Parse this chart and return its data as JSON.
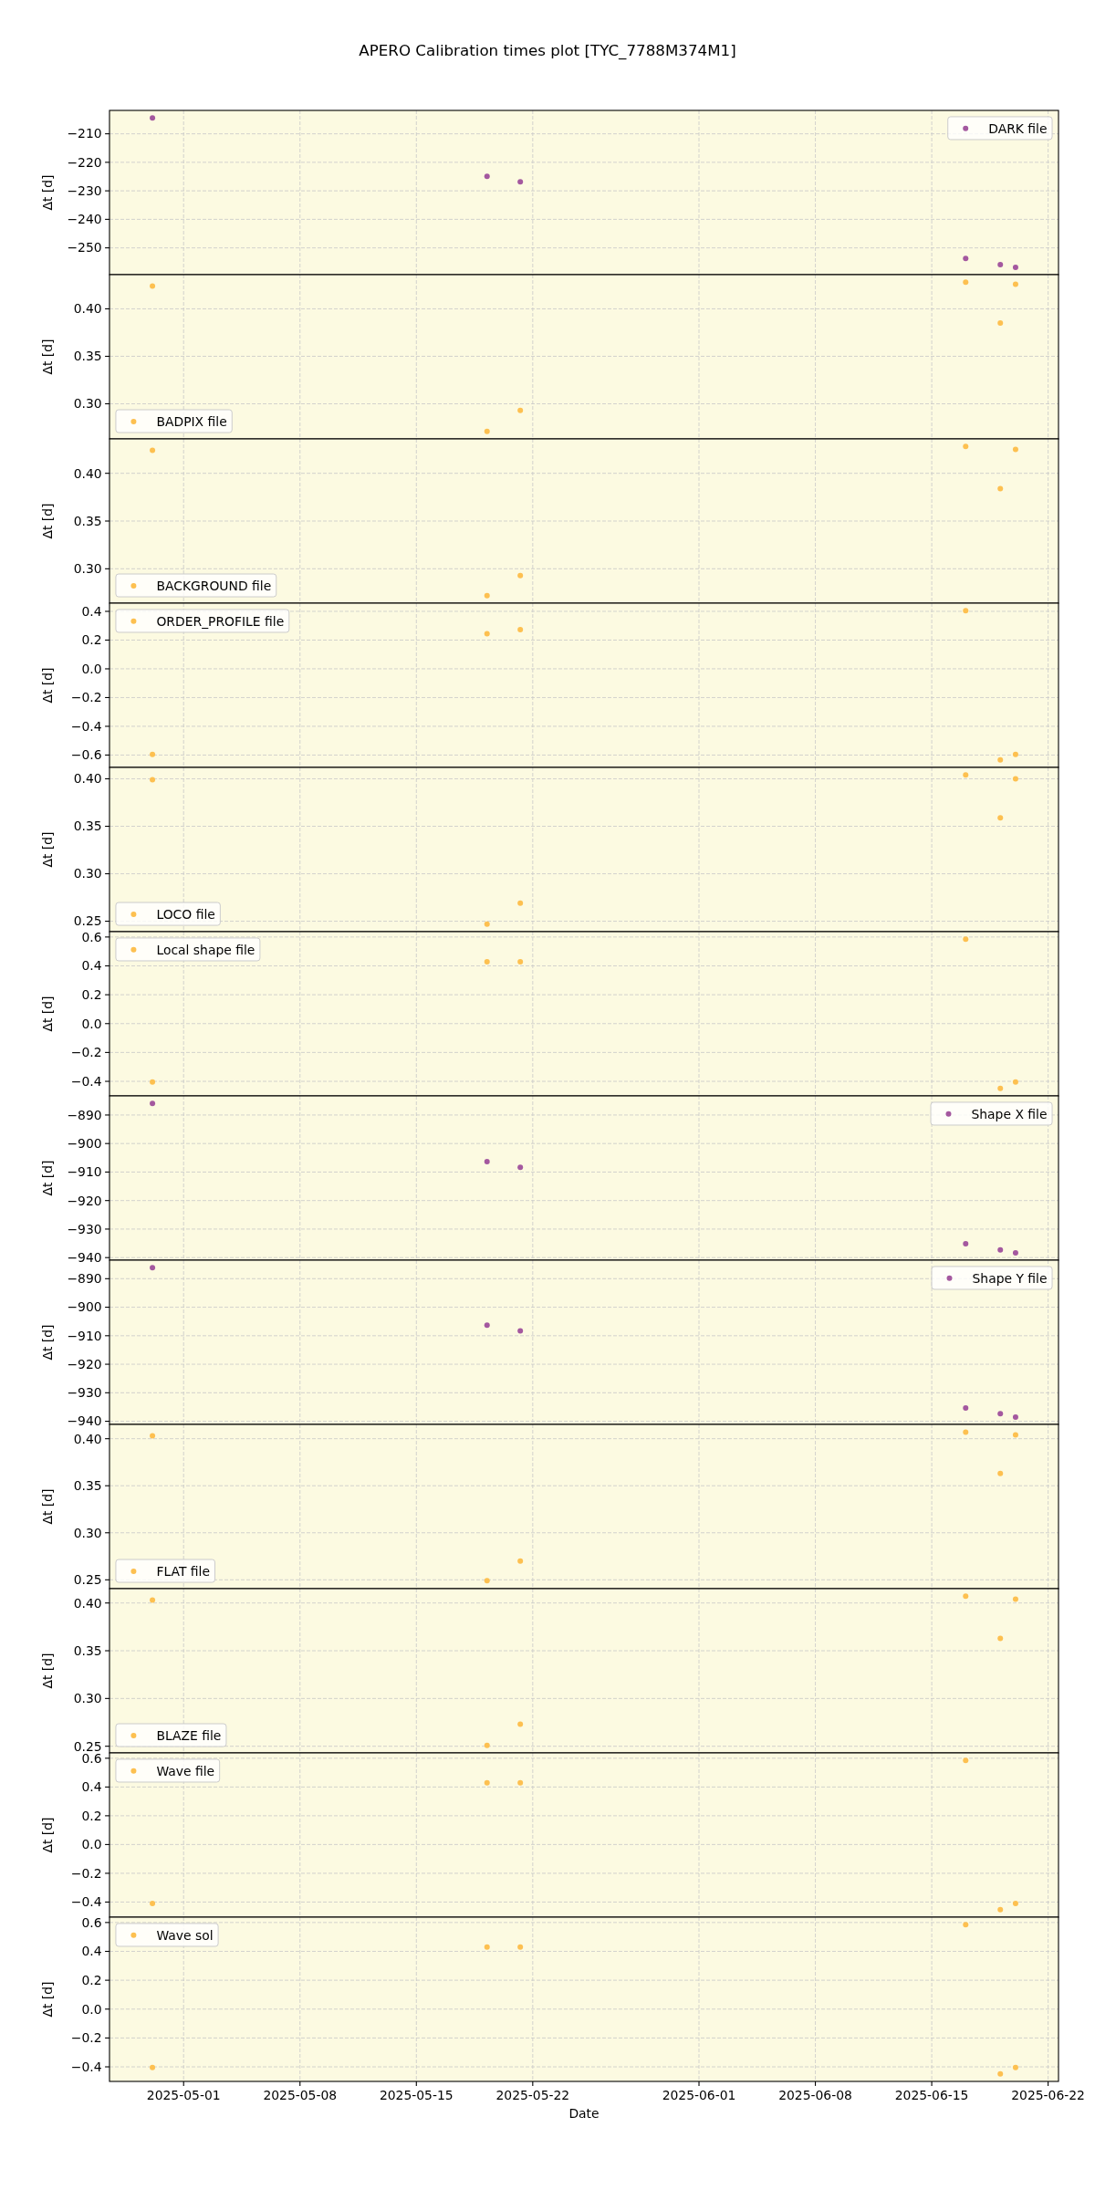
{
  "chart_data": [
    {
      "type": "scatter",
      "title": "APERO Calibration times plot [TYC_7788M374M1]",
      "x": [
        "2025-04-29T03:00",
        "2025-05-19T06:00",
        "2025-05-21T06:00",
        "2025-06-17T01:00",
        "2025-06-19T03:00",
        "2025-06-20T01:00"
      ],
      "xlim": [
        "2025-04-26T13:00",
        "2025-06-22T15:00"
      ],
      "xticks": [
        "2025-05-01",
        "2025-05-08",
        "2025-05-15",
        "2025-05-22",
        "2025-06-01",
        "2025-06-08",
        "2025-06-15",
        "2025-06-22"
      ],
      "ylabel": "Δt [d]",
      "ylim": [
        -259.4,
        -201.8
      ],
      "yticks": [
        {
          "value": -250,
          "label": "−250"
        },
        {
          "value": -240,
          "label": "−240"
        },
        {
          "value": -230,
          "label": "−230"
        },
        {
          "value": -220,
          "label": "−220"
        },
        {
          "value": -210,
          "label": "−210"
        }
      ],
      "series": [
        {
          "name": "DARK file",
          "color": "#a4589f",
          "values": [
            -204.4,
            -224.9,
            -226.8,
            -253.7,
            -255.9,
            -256.8
          ]
        }
      ],
      "legend": "top right",
      "grid": true,
      "marker": "circle",
      "tick_labels": "y"
    },
    {
      "type": "scatter",
      "x": [
        "2025-04-29T03:00",
        "2025-05-19T06:00",
        "2025-05-21T06:00",
        "2025-06-17T01:00",
        "2025-06-19T03:00",
        "2025-06-20T01:00"
      ],
      "xlim": [
        "2025-04-26T13:00",
        "2025-06-22T15:00"
      ],
      "xticks": [
        "2025-05-01",
        "2025-05-08",
        "2025-05-15",
        "2025-05-22",
        "2025-06-01",
        "2025-06-08",
        "2025-06-15",
        "2025-06-22"
      ],
      "ylabel": "Δt [d]",
      "ylim": [
        0.263,
        0.436
      ],
      "yticks": [
        {
          "value": 0.3,
          "label": "0.30"
        },
        {
          "value": 0.35,
          "label": "0.35"
        },
        {
          "value": 0.4,
          "label": "0.40"
        }
      ],
      "series": [
        {
          "name": "BADPIX file",
          "color": "#fdc050",
          "values": [
            0.424,
            0.271,
            0.293,
            0.428,
            0.385,
            0.426
          ]
        }
      ],
      "legend": "bottom left",
      "grid": true,
      "marker": "circle",
      "tick_labels": "y"
    },
    {
      "type": "scatter",
      "x": [
        "2025-04-29T03:00",
        "2025-05-19T06:00",
        "2025-05-21T06:00",
        "2025-06-17T01:00",
        "2025-06-19T03:00",
        "2025-06-20T01:00"
      ],
      "xlim": [
        "2025-04-26T13:00",
        "2025-06-22T15:00"
      ],
      "xticks": [
        "2025-05-01",
        "2025-05-08",
        "2025-05-15",
        "2025-05-22",
        "2025-06-01",
        "2025-06-08",
        "2025-06-15",
        "2025-06-22"
      ],
      "ylabel": "Δt [d]",
      "ylim": [
        0.264,
        0.436
      ],
      "yticks": [
        {
          "value": 0.3,
          "label": "0.30"
        },
        {
          "value": 0.35,
          "label": "0.35"
        },
        {
          "value": 0.4,
          "label": "0.40"
        }
      ],
      "series": [
        {
          "name": "BACKGROUND file",
          "color": "#fdc050",
          "values": [
            0.424,
            0.272,
            0.293,
            0.428,
            0.384,
            0.425
          ]
        }
      ],
      "legend": "bottom left",
      "grid": true,
      "marker": "circle",
      "tick_labels": "y"
    },
    {
      "type": "scatter",
      "x": [
        "2025-04-29T03:00",
        "2025-05-19T06:00",
        "2025-05-21T06:00",
        "2025-06-17T01:00",
        "2025-06-19T03:00",
        "2025-06-20T01:00"
      ],
      "xlim": [
        "2025-04-26T13:00",
        "2025-06-22T15:00"
      ],
      "xticks": [
        "2025-05-01",
        "2025-05-08",
        "2025-05-15",
        "2025-05-22",
        "2025-06-01",
        "2025-06-08",
        "2025-06-15",
        "2025-06-22"
      ],
      "ylabel": "Δt [d]",
      "ylim": [
        -0.686,
        0.457
      ],
      "yticks": [
        {
          "value": -0.6,
          "label": "−0.6"
        },
        {
          "value": -0.4,
          "label": "−0.4"
        },
        {
          "value": -0.2,
          "label": "−0.2"
        },
        {
          "value": 0,
          "label": "0.0"
        },
        0.2,
        0.4
      ],
      "series": [
        {
          "name": "ORDER_PROFILE file",
          "color": "#fdc050",
          "values": [
            -0.595,
            0.244,
            0.273,
            0.405,
            -0.634,
            -0.595
          ]
        }
      ],
      "legend": "top left",
      "grid": true,
      "marker": "circle",
      "tick_labels": "y"
    },
    {
      "type": "scatter",
      "x": [
        "2025-04-29T03:00",
        "2025-05-19T06:00",
        "2025-05-21T06:00",
        "2025-06-17T01:00",
        "2025-06-19T03:00",
        "2025-06-20T01:00"
      ],
      "xlim": [
        "2025-04-26T13:00",
        "2025-06-22T15:00"
      ],
      "xticks": [
        "2025-05-01",
        "2025-05-08",
        "2025-05-15",
        "2025-05-22",
        "2025-06-01",
        "2025-06-08",
        "2025-06-15",
        "2025-06-22"
      ],
      "ylabel": "Δt [d]",
      "ylim": [
        0.239,
        0.412
      ],
      "yticks": [
        {
          "value": 0.25,
          "label": "0.25"
        },
        {
          "value": 0.3,
          "label": "0.30"
        },
        {
          "value": 0.35,
          "label": "0.35"
        },
        {
          "value": 0.4,
          "label": "0.40"
        }
      ],
      "series": [
        {
          "name": "LOCO file",
          "color": "#fdc050",
          "values": [
            0.399,
            0.247,
            0.269,
            0.404,
            0.359,
            0.4
          ]
        }
      ],
      "legend": "bottom left",
      "grid": true,
      "marker": "circle",
      "tick_labels": "y"
    },
    {
      "type": "scatter",
      "x": [
        "2025-04-29T03:00",
        "2025-05-19T06:00",
        "2025-05-21T06:00",
        "2025-06-17T01:00",
        "2025-06-19T03:00",
        "2025-06-20T01:00"
      ],
      "xlim": [
        "2025-04-26T13:00",
        "2025-06-22T15:00"
      ],
      "xticks": [
        "2025-05-01",
        "2025-05-08",
        "2025-05-15",
        "2025-05-22",
        "2025-06-01",
        "2025-06-08",
        "2025-06-15",
        "2025-06-22"
      ],
      "ylabel": "Δt [d]",
      "ylim": [
        -0.501,
        0.637
      ],
      "yticks": [
        {
          "value": -0.4,
          "label": "−0.4"
        },
        {
          "value": -0.2,
          "label": "−0.2"
        },
        {
          "value": 0,
          "label": "0.0"
        },
        0.2,
        0.4,
        0.6
      ],
      "series": [
        {
          "name": "Local shape file",
          "color": "#fdc050",
          "values": [
            -0.405,
            0.429,
            0.429,
            0.585,
            -0.449,
            -0.405
          ]
        }
      ],
      "legend": "top left",
      "grid": true,
      "marker": "circle",
      "tick_labels": "y"
    },
    {
      "type": "scatter",
      "x": [
        "2025-04-29T03:00",
        "2025-05-19T06:00",
        "2025-05-21T06:00",
        "2025-06-17T01:00",
        "2025-06-19T03:00",
        "2025-06-20T01:00"
      ],
      "xlim": [
        "2025-04-26T13:00",
        "2025-06-22T15:00"
      ],
      "xticks": [
        "2025-05-01",
        "2025-05-08",
        "2025-05-15",
        "2025-05-22",
        "2025-06-01",
        "2025-06-08",
        "2025-06-15",
        "2025-06-22"
      ],
      "ylabel": "Δt [d]",
      "ylim": [
        -940.9,
        -883.3
      ],
      "yticks": [
        {
          "value": -940,
          "label": "−940"
        },
        {
          "value": -930,
          "label": "−930"
        },
        {
          "value": -920,
          "label": "−920"
        },
        {
          "value": -910,
          "label": "−910"
        },
        {
          "value": -900,
          "label": "−900"
        },
        {
          "value": -890,
          "label": "−890"
        }
      ],
      "series": [
        {
          "name": "Shape X file",
          "color": "#a4589f",
          "values": [
            -885.9,
            -906.3,
            -908.3,
            -935.1,
            -937.3,
            -938.3
          ]
        }
      ],
      "legend": "top right",
      "grid": true,
      "marker": "circle",
      "tick_labels": "y"
    },
    {
      "type": "scatter",
      "x": [
        "2025-04-29T03:00",
        "2025-05-19T06:00",
        "2025-05-21T06:00",
        "2025-06-17T01:00",
        "2025-06-19T03:00",
        "2025-06-20T01:00"
      ],
      "xlim": [
        "2025-04-26T13:00",
        "2025-06-22T15:00"
      ],
      "xticks": [
        "2025-05-01",
        "2025-05-08",
        "2025-05-15",
        "2025-05-22",
        "2025-06-01",
        "2025-06-08",
        "2025-06-15",
        "2025-06-22"
      ],
      "ylabel": "Δt [d]",
      "ylim": [
        -941.1,
        -883.5
      ],
      "yticks": [
        {
          "value": -940,
          "label": "−940"
        },
        {
          "value": -930,
          "label": "−930"
        },
        {
          "value": -920,
          "label": "−920"
        },
        {
          "value": -910,
          "label": "−910"
        },
        {
          "value": -900,
          "label": "−900"
        },
        {
          "value": -890,
          "label": "−890"
        }
      ],
      "series": [
        {
          "name": "Shape Y file",
          "color": "#a4589f",
          "values": [
            -886.1,
            -906.3,
            -908.3,
            -935.3,
            -937.3,
            -938.5
          ]
        }
      ],
      "legend": "top right",
      "grid": true,
      "marker": "circle",
      "tick_labels": "y"
    },
    {
      "type": "scatter",
      "x": [
        "2025-04-29T03:00",
        "2025-05-19T06:00",
        "2025-05-21T06:00",
        "2025-06-17T01:00",
        "2025-06-19T03:00",
        "2025-06-20T01:00"
      ],
      "xlim": [
        "2025-04-26T13:00",
        "2025-06-22T15:00"
      ],
      "xticks": [
        "2025-05-01",
        "2025-05-08",
        "2025-05-15",
        "2025-05-22",
        "2025-06-01",
        "2025-06-08",
        "2025-06-15",
        "2025-06-22"
      ],
      "ylabel": "Δt [d]",
      "ylim": [
        0.2406,
        0.4152
      ],
      "yticks": [
        {
          "value": 0.25,
          "label": "0.25"
        },
        {
          "value": 0.3,
          "label": "0.30"
        },
        {
          "value": 0.35,
          "label": "0.35"
        },
        {
          "value": 0.4,
          "label": "0.40"
        }
      ],
      "series": [
        {
          "name": "FLAT file",
          "color": "#fdc050",
          "values": [
            0.403,
            0.249,
            0.27,
            0.407,
            0.363,
            0.404
          ]
        }
      ],
      "legend": "bottom left",
      "grid": true,
      "marker": "circle",
      "tick_labels": "y"
    },
    {
      "type": "scatter",
      "x": [
        "2025-04-29T03:00",
        "2025-05-19T06:00",
        "2025-05-21T06:00",
        "2025-06-17T01:00",
        "2025-06-19T03:00",
        "2025-06-20T01:00"
      ],
      "xlim": [
        "2025-04-26T13:00",
        "2025-06-22T15:00"
      ],
      "xticks": [
        "2025-05-01",
        "2025-05-08",
        "2025-05-15",
        "2025-05-22",
        "2025-06-01",
        "2025-06-08",
        "2025-06-15",
        "2025-06-22"
      ],
      "ylabel": "Δt [d]",
      "ylim": [
        0.243,
        0.415
      ],
      "yticks": [
        {
          "value": 0.25,
          "label": "0.25"
        },
        {
          "value": 0.3,
          "label": "0.30"
        },
        {
          "value": 0.35,
          "label": "0.35"
        },
        {
          "value": 0.4,
          "label": "0.40"
        }
      ],
      "series": [
        {
          "name": "BLAZE file",
          "color": "#fdc050",
          "values": [
            0.403,
            0.251,
            0.273,
            0.407,
            0.363,
            0.404
          ]
        }
      ],
      "legend": "bottom left",
      "grid": true,
      "marker": "circle",
      "tick_labels": "y"
    },
    {
      "type": "scatter",
      "x": [
        "2025-04-29T03:00",
        "2025-05-19T06:00",
        "2025-05-21T06:00",
        "2025-06-17T01:00",
        "2025-06-19T03:00",
        "2025-06-20T01:00"
      ],
      "xlim": [
        "2025-04-26T13:00",
        "2025-06-22T15:00"
      ],
      "xticks": [
        "2025-05-01",
        "2025-05-08",
        "2025-05-15",
        "2025-05-22",
        "2025-06-01",
        "2025-06-08",
        "2025-06-15",
        "2025-06-22"
      ],
      "ylabel": "Δt [d]",
      "ylim": [
        -0.505,
        0.637
      ],
      "yticks": [
        {
          "value": -0.4,
          "label": "−0.4"
        },
        {
          "value": -0.2,
          "label": "−0.2"
        },
        {
          "value": 0,
          "label": "0.0"
        },
        0.2,
        0.4,
        0.6
      ],
      "series": [
        {
          "name": "Wave file",
          "color": "#fdc050",
          "values": [
            -0.41,
            0.429,
            0.429,
            0.585,
            -0.453,
            -0.41
          ]
        }
      ],
      "legend": "top left",
      "grid": true,
      "marker": "circle",
      "tick_labels": "y"
    },
    {
      "type": "scatter",
      "xlabel": "Date",
      "x": [
        "2025-04-29T03:00",
        "2025-05-19T06:00",
        "2025-05-21T06:00",
        "2025-06-17T01:00",
        "2025-06-19T03:00",
        "2025-06-20T01:00"
      ],
      "xlim": [
        "2025-04-26T13:00",
        "2025-06-22T15:00"
      ],
      "xticks": [
        "2025-05-01",
        "2025-05-08",
        "2025-05-15",
        "2025-05-22",
        "2025-06-01",
        "2025-06-08",
        "2025-06-15",
        "2025-06-22"
      ],
      "ylabel": "Δt [d]",
      "ylim": [
        -0.501,
        0.637
      ],
      "yticks": [
        {
          "value": -0.4,
          "label": "−0.4"
        },
        {
          "value": -0.2,
          "label": "−0.2"
        },
        {
          "value": 0,
          "label": "0.0"
        },
        0.2,
        0.4,
        0.6
      ],
      "series": [
        {
          "name": "Wave sol",
          "color": "#fdc050",
          "values": [
            -0.405,
            0.43,
            0.43,
            0.585,
            -0.449,
            -0.405
          ]
        }
      ],
      "legend": "top left",
      "grid": true,
      "marker": "circle"
    }
  ]
}
